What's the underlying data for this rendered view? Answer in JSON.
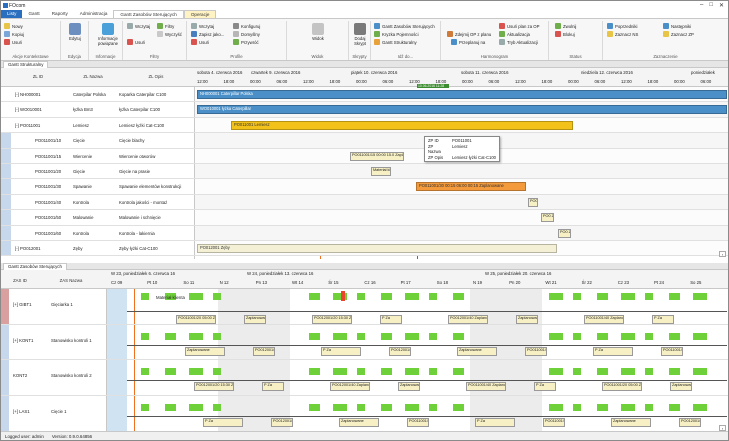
{
  "window": {
    "title": "FOcom"
  },
  "ribbon_tabs": [
    "Listy",
    "Gantt",
    "Raporty",
    "Administracja",
    "Gantt Zasobów Sterujących",
    "Operacje"
  ],
  "ribbon_groups": {
    "akcje": {
      "label": "Akcje Kontekstowe",
      "items": [
        "Nowy",
        "Kopiuj",
        "Usuń"
      ]
    },
    "edycja": {
      "label": "Edycja",
      "items": [
        "Edytuj"
      ]
    },
    "informacje": {
      "label": "Informacje",
      "items": [
        "Informacje powiązane"
      ]
    },
    "filtry": {
      "label": "Filtry",
      "items": [
        "Wczytaj",
        "Filtry",
        "Wyczyść",
        "Usuń"
      ]
    },
    "profile": {
      "label": "Profile",
      "items": [
        "Wczytaj",
        "Konfiguruj",
        "Zapisz jako...",
        "Domyślny",
        "Usuń",
        "Przywróć"
      ]
    },
    "widok": {
      "label": "Widok",
      "items": [
        "Widok"
      ]
    },
    "skrypty": {
      "label": "Skrypty",
      "items": [
        "Dodaj Skrypt"
      ]
    },
    "idzdo": {
      "label": "Idź do...",
      "items": [
        "Gantt Zasobów Sterujących",
        "Kryzka Pojemności",
        "Gantt Strukturalny"
      ]
    },
    "harmonogram": {
      "label": "Harmonogram",
      "items": [
        "Usuń plan za OP",
        "Zdejmij OP z planu",
        "Przeplanuj na",
        "Aktualizacja",
        "Tryb Aktualizacji"
      ]
    },
    "status": {
      "label": "Status",
      "items": [
        "Zwolnij",
        "Blokuj"
      ]
    },
    "zaznaczenie": {
      "label": "Zaznaczenie",
      "items": [
        "Poprzedniki",
        "Następniki",
        "Zaznacz NS",
        "Zaznacz ZP"
      ]
    }
  },
  "top_panel": {
    "tab": "Gantt Strukturalny",
    "columns": [
      "ZL ID",
      "ZL Nazwa",
      "ZL Opis"
    ],
    "dates": [
      "sobota 4. czerwca 2016",
      "czwartek 9. czerwca 2016",
      "piątek 10. czerwca 2016",
      "sobota 11. czerwca 2016",
      "niedziela 12. czerwca 2016",
      "poniedziałek"
    ],
    "hours": [
      "12:00",
      "18:00",
      "00:00",
      "06:00",
      "12:00",
      "18:00",
      "00:00",
      "06:00",
      "12:00",
      "18:00",
      "00:00",
      "06:00",
      "12:00",
      "18:00",
      "00:00",
      "06:00",
      "12:00",
      "18:00",
      "00:00",
      "06:00"
    ],
    "now_marker": "10.06.2016 11:28",
    "rows": [
      {
        "id": "[-] NH000001",
        "name": "Caterpilar Polska",
        "desc": "Koparka Caterpilar C100"
      },
      {
        "id": "[-] WO010001",
        "name": "łyżka Bm3",
        "desc": "łyżka Caterpilar C100"
      },
      {
        "id": "[-] PO011001",
        "name": "Lemiesz",
        "desc": "Lemiesz łyżki Cat-C100"
      },
      {
        "id": "PO011001/10",
        "name": "Cięcie",
        "desc": "Cięcie blachy"
      },
      {
        "id": "PO011001/15",
        "name": "Wiercenie",
        "desc": "Wiercenie otworów"
      },
      {
        "id": "PO011001/20",
        "name": "Gięcie",
        "desc": "Gięcie na prasie"
      },
      {
        "id": "PO011001/30",
        "name": "Spawanie",
        "desc": "Spawanie elementów konstrukcji"
      },
      {
        "id": "PO011001/40",
        "name": "Kontrola",
        "desc": "Kontrola jakości - montaż"
      },
      {
        "id": "PO011001/50",
        "name": "Malowanie",
        "desc": "Malowanie i schnięcie"
      },
      {
        "id": "PO011001/60",
        "name": "Kontrola",
        "desc": "Kontrola - lakiernia"
      },
      {
        "id": "[-] PO012001",
        "name": "Zęby",
        "desc": "Zęby łyżki Cat-C100"
      }
    ],
    "bars": {
      "r0": "NH000001 Caterpillar Polska",
      "r1": "WO010001 łyżka Caterpillar",
      "r2": "PO011001 Lemiesz",
      "r4": "PO011001/15 00:00 15.0 Zaplanowane",
      "r5": "Materiał klienta Zapl.",
      "r6": "PO011001/30 00:15 06:00 00:15 Zaplanowane",
      "r7": "PO0 Zapl",
      "r8": "PO0 Zapl",
      "r9": "PO0 Zapl",
      "r10": "PO012001 Zęby"
    },
    "tooltip": [
      [
        "ZP ID",
        "PO011001"
      ],
      [
        "ZP Nazwa",
        "Lemiesz"
      ],
      [
        "ZP Opis",
        "Lemiesz łyżki Cat-C100"
      ]
    ]
  },
  "bottom_panel": {
    "tab": "Gantt Zasobów Sterujących",
    "columns": [
      "ZAS ID",
      "ZAS Nazwa"
    ],
    "weeks": [
      "W 23, poniedziałek 6. czerwca 16",
      "W 24, poniedziałek 13. czerwca 16",
      "W 25, poniedziałek 20. czerwca 16"
    ],
    "days": [
      "Cz 09",
      "Pt 10",
      "So 11",
      "N 12",
      "Pn 13",
      "Wt 14",
      "Śr 15",
      "Cz 16",
      "Pt 17",
      "So 18",
      "N 19",
      "Pn 20",
      "Wt 21",
      "Śr 22",
      "Cz 23",
      "Pt 24",
      "So 25"
    ],
    "rows": [
      {
        "id": "[+] GIBT1",
        "name": "Gięciarka 1"
      },
      {
        "id": "[+] KONT1",
        "name": "Stanowisko kontroli 1"
      },
      {
        "id": "KONT2",
        "name": "Stanowisko kontroli 2"
      },
      {
        "id": "[+] LAS1",
        "name": "Cięcie 1"
      }
    ],
    "labels": {
      "material": "Materiał klienta",
      "op_a": "PO011001/20 05:00 Zaplanowane",
      "op_b": "PO012001/20 15:30 Zaplanowane",
      "op_c": "PO012001/40 Zaplanowane",
      "op_d": "PO011001/40 Zaplanowane",
      "op_short": "Zaplanowane",
      "op_p": "P Za"
    }
  },
  "status_bar": {
    "user": "Logged user: admin",
    "version": "Version: 0.9.0.64856"
  },
  "colors": {
    "blue_bar": "#4a8fc7",
    "gold_bar": "#f2c21b",
    "orange_bar": "#f39a3c",
    "green_block": "#6fd13a",
    "now_line": "#f07020",
    "top_now": "#3b8c2e"
  }
}
